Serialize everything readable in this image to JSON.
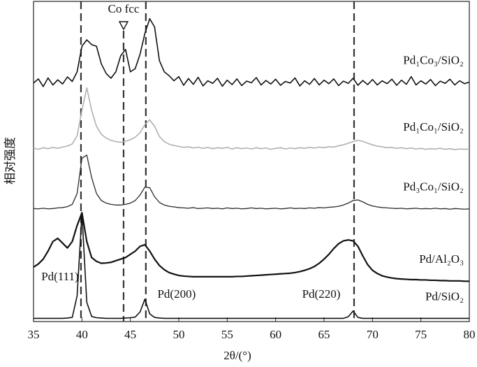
{
  "chart_data": {
    "type": "line",
    "x_label": "2θ/(°)",
    "y_label": "相对强度",
    "xlim": [
      35,
      80
    ],
    "xticks": [
      35,
      40,
      45,
      50,
      55,
      60,
      65,
      70,
      75,
      80
    ],
    "ylim": [
      0,
      100
    ],
    "reference_lines": [
      {
        "x": 39.9,
        "label": "Pd(111)"
      },
      {
        "x": 44.3,
        "label": "Co fcc"
      },
      {
        "x": 46.6,
        "label": "Pd(200)"
      },
      {
        "x": 68.1,
        "label": "Pd(220)"
      }
    ],
    "x": [
      35,
      35.5,
      36,
      36.5,
      37,
      37.5,
      38,
      38.5,
      39,
      39.5,
      40,
      40.5,
      41,
      41.5,
      42,
      42.5,
      43,
      43.5,
      44,
      44.5,
      45,
      45.5,
      46,
      46.5,
      47,
      47.5,
      48,
      48.5,
      49,
      49.5,
      50,
      50.5,
      51,
      51.5,
      52,
      52.5,
      53,
      53.5,
      54,
      54.5,
      55,
      55.5,
      56,
      56.5,
      57,
      57.5,
      58,
      58.5,
      59,
      59.5,
      60,
      60.5,
      61,
      61.5,
      62,
      62.5,
      63,
      63.5,
      64,
      64.5,
      65,
      65.5,
      66,
      66.5,
      67,
      67.5,
      68,
      68.5,
      69,
      69.5,
      70,
      70.5,
      71,
      71.5,
      72,
      72.5,
      73,
      73.5,
      74,
      74.5,
      75,
      75.5,
      76,
      76.5,
      77,
      77.5,
      78,
      78.5,
      79,
      79.5,
      80
    ],
    "series": [
      {
        "name": "Pd/SiO₂",
        "color": "#111111",
        "width": 1.6,
        "values": [
          1.0,
          1.0,
          1.0,
          1.0,
          1.0,
          1.0,
          1.0,
          1.1,
          1.3,
          8.0,
          33.7,
          6.0,
          1.6,
          1.2,
          1.1,
          1.0,
          1.0,
          1.0,
          1.0,
          1.1,
          1.2,
          1.4,
          3.0,
          7.0,
          2.4,
          1.3,
          1.1,
          1.0,
          1.0,
          1.0,
          1.0,
          1.0,
          1.0,
          1.0,
          1.0,
          1.0,
          1.0,
          1.0,
          1.0,
          1.0,
          1.0,
          1.0,
          1.0,
          1.0,
          1.0,
          1.0,
          1.0,
          1.0,
          1.0,
          1.0,
          1.0,
          1.0,
          1.0,
          1.0,
          1.0,
          1.0,
          1.0,
          1.0,
          1.0,
          1.0,
          1.0,
          1.0,
          1.0,
          1.0,
          1.0,
          1.5,
          3.3,
          1.3,
          1.0,
          1.0,
          1.0,
          1.0,
          1.0,
          1.0,
          1.0,
          1.0,
          1.0,
          1.0,
          1.0,
          1.0,
          1.0,
          1.0,
          1.0,
          1.0,
          1.0,
          1.0,
          1.0,
          1.0,
          1.0,
          1.0,
          1.0
        ]
      },
      {
        "name": "Pd/Al₂O₃",
        "color": "#111111",
        "width": 2.2,
        "values": [
          17,
          18,
          19.5,
          22,
          25,
          26,
          24.5,
          23,
          25,
          30,
          34,
          25,
          20,
          18.8,
          18.2,
          18.3,
          18.5,
          19,
          19.5,
          20,
          21,
          22,
          23.5,
          24,
          22,
          19.5,
          17.5,
          16.2,
          15.3,
          14.8,
          14.4,
          14.2,
          14.1,
          14,
          14,
          14,
          14,
          14,
          14,
          14,
          14,
          14,
          14.1,
          14.1,
          14.2,
          14.3,
          14.4,
          14.5,
          14.6,
          14.7,
          14.8,
          14.9,
          15,
          15.1,
          15.3,
          15.6,
          16,
          16.5,
          17.2,
          18.2,
          19.5,
          21,
          22.8,
          24.3,
          25.2,
          25.5,
          25.2,
          23.5,
          20.5,
          17.8,
          16,
          15,
          14.3,
          13.9,
          13.6,
          13.4,
          13.3,
          13.2,
          13.1,
          13.1,
          13,
          13,
          12.9,
          12.9,
          12.8,
          12.8,
          12.7,
          12.7,
          12.7,
          12.6,
          12.6
        ]
      },
      {
        "name": "Pd₃Co₁/SiO₂",
        "color": "#2a2a2a",
        "width": 1.3,
        "values": [
          35.3,
          35.2,
          35.4,
          35.2,
          35.3,
          35.5,
          35.6,
          35.9,
          36.6,
          40,
          51,
          52,
          45,
          40,
          37.8,
          37,
          36.6,
          36.4,
          36.4,
          36.6,
          37,
          37.8,
          39.5,
          42,
          41.8,
          39,
          37.2,
          36.4,
          36,
          35.8,
          35.6,
          35.5,
          35.4,
          35.6,
          35.3,
          35.4,
          35.5,
          35.3,
          35.4,
          35.2,
          35.5,
          35.3,
          35.4,
          35.2,
          35.3,
          35.5,
          35.3,
          35.4,
          35.2,
          35.3,
          35.4,
          35.2,
          35.3,
          35.5,
          35.3,
          35.4,
          35.3,
          35.5,
          35.4,
          35.6,
          35.5,
          35.7,
          35.8,
          36,
          36.4,
          37,
          37.8,
          38,
          37.4,
          36.6,
          36.1,
          35.8,
          35.6,
          35.5,
          35.4,
          35.3,
          35.4,
          35.2,
          35.3,
          35.4,
          35.2,
          35.3,
          35.2,
          35.4,
          35.2,
          35.3,
          35.1,
          35.3,
          35.2,
          35.1,
          35.2
        ]
      },
      {
        "name": "Pd₁Co₁/SiO₂",
        "color": "#b0b0b0",
        "width": 1.6,
        "values": [
          54.2,
          53.8,
          54.3,
          54,
          54.4,
          54.1,
          54.5,
          54.8,
          55.5,
          58,
          66,
          73,
          66,
          61,
          58.5,
          57.3,
          56.6,
          56.2,
          56,
          56.3,
          56.8,
          57.6,
          59,
          61.5,
          63,
          61,
          57.8,
          56.2,
          55.4,
          55,
          54.7,
          54.4,
          54.6,
          54.2,
          54.5,
          54.1,
          54.4,
          54,
          54.3,
          54.1,
          54.4,
          53.9,
          54.3,
          54,
          54.2,
          53.9,
          54.3,
          54,
          54.2,
          53.8,
          54.1,
          54.3,
          53.9,
          54.2,
          54,
          54.3,
          54.1,
          54.4,
          54.2,
          54.5,
          54.3,
          54.6,
          54.5,
          54.9,
          55.2,
          55.7,
          56.2,
          56.6,
          56.3,
          55.7,
          55.2,
          54.8,
          54.6,
          54.3,
          54.4,
          54.1,
          54.3,
          54,
          54.2,
          53.9,
          54.1,
          53.8,
          54,
          53.9,
          54.1,
          53.8,
          54,
          53.7,
          53.9,
          53.8,
          53.9
        ]
      },
      {
        "name": "Pd₁Co₃/SiO₂",
        "color": "#111111",
        "width": 1.6,
        "values": [
          74.5,
          75.8,
          73.4,
          76.1,
          73.9,
          75.5,
          74.2,
          76.4,
          75,
          78,
          86,
          88,
          86.5,
          86,
          80.5,
          77.5,
          76,
          78,
          83,
          85,
          78,
          79,
          83.5,
          90,
          94.6,
          92,
          81.5,
          78,
          76.8,
          75.2,
          76.5,
          73.8,
          75.9,
          74.1,
          76.3,
          73.6,
          75.2,
          74.4,
          76,
          73.5,
          75.4,
          74,
          75.8,
          73.7,
          75.1,
          74.6,
          76.2,
          73.9,
          75.3,
          74.2,
          75.7,
          73.8,
          75,
          74.5,
          76.1,
          73.6,
          75.2,
          74.1,
          75.9,
          73.9,
          75.4,
          74.3,
          75.8,
          73.7,
          75.1,
          74.4,
          76,
          73.8,
          75.3,
          74,
          75.6,
          73.9,
          75.2,
          74.3,
          75.7,
          73.8,
          75.4,
          74.1,
          76.5,
          73.9,
          75.2,
          74.2,
          75.6,
          73.7,
          75.1,
          74.4,
          75.7,
          73.9,
          75.2,
          74.3,
          74.8
        ]
      }
    ]
  }
}
